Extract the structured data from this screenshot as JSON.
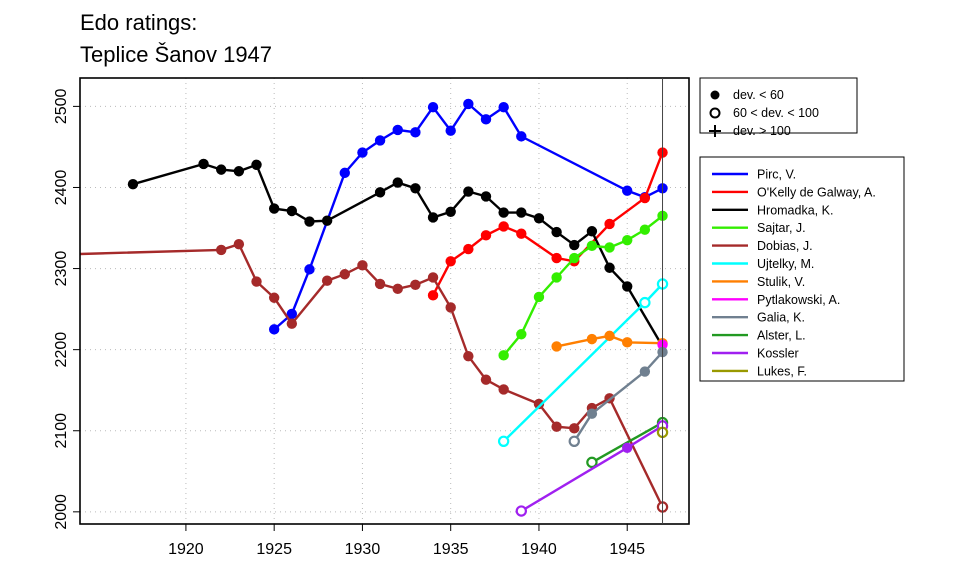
{
  "chart_data": {
    "type": "line",
    "title_lines": [
      "Edo ratings:",
      "Teplice Šanov 1947"
    ],
    "xlabel": "",
    "ylabel": "",
    "xlim": [
      1914,
      1948.5
    ],
    "ylim": [
      1985,
      2535
    ],
    "x_ticks": [
      1920,
      1925,
      1930,
      1935,
      1940,
      1945
    ],
    "y_ticks": [
      2000,
      2100,
      2200,
      2300,
      2400,
      2500
    ],
    "grid": true,
    "event_year": 1947,
    "marker_legend": [
      {
        "label": "dev. < 60",
        "marker": "filled"
      },
      {
        "label": "60 < dev. < 100",
        "marker": "open"
      },
      {
        "label": "dev. > 100",
        "marker": "plus"
      }
    ],
    "series": [
      {
        "name": "Pirc, V.",
        "color": "#0000ff",
        "points": [
          [
            1925,
            2225,
            "f"
          ],
          [
            1926,
            2244,
            "f"
          ],
          [
            1927,
            2299,
            "f"
          ],
          [
            1929,
            2418,
            "f"
          ],
          [
            1930,
            2443,
            "f"
          ],
          [
            1931,
            2458,
            "f"
          ],
          [
            1932,
            2471,
            "f"
          ],
          [
            1933,
            2468,
            "f"
          ],
          [
            1934,
            2499,
            "f"
          ],
          [
            1935,
            2470,
            "f"
          ],
          [
            1936,
            2503,
            "f"
          ],
          [
            1937,
            2484,
            "f"
          ],
          [
            1938,
            2499,
            "f"
          ],
          [
            1939,
            2463,
            "f"
          ],
          [
            1945,
            2396,
            "f"
          ],
          [
            1946,
            2388,
            "f"
          ],
          [
            1947,
            2399,
            "f"
          ]
        ]
      },
      {
        "name": "O'Kelly de Galway, A.",
        "color": "#ff0000",
        "points": [
          [
            1934,
            2267,
            "f"
          ],
          [
            1935,
            2309,
            "f"
          ],
          [
            1936,
            2324,
            "f"
          ],
          [
            1937,
            2341,
            "f"
          ],
          [
            1938,
            2352,
            "f"
          ],
          [
            1939,
            2343,
            "f"
          ],
          [
            1941,
            2313,
            "f"
          ],
          [
            1942,
            2309,
            "f"
          ],
          [
            1944,
            2355,
            "f"
          ],
          [
            1946,
            2387,
            "f"
          ],
          [
            1947,
            2443,
            "f"
          ]
        ]
      },
      {
        "name": "Hromadka, K.",
        "color": "#000000",
        "points": [
          [
            1917,
            2404,
            "f"
          ],
          [
            1921,
            2429,
            "f"
          ],
          [
            1922,
            2422,
            "f"
          ],
          [
            1923,
            2420,
            "f"
          ],
          [
            1924,
            2428,
            "f"
          ],
          [
            1925,
            2374,
            "f"
          ],
          [
            1926,
            2371,
            "f"
          ],
          [
            1927,
            2358,
            "f"
          ],
          [
            1928,
            2359,
            "f"
          ],
          [
            1931,
            2394,
            "f"
          ],
          [
            1932,
            2406,
            "f"
          ],
          [
            1933,
            2399,
            "f"
          ],
          [
            1934,
            2363,
            "f"
          ],
          [
            1935,
            2370,
            "f"
          ],
          [
            1936,
            2395,
            "f"
          ],
          [
            1937,
            2389,
            "f"
          ],
          [
            1938,
            2369,
            "f"
          ],
          [
            1939,
            2369,
            "f"
          ],
          [
            1940,
            2362,
            "f"
          ],
          [
            1941,
            2345,
            "f"
          ],
          [
            1942,
            2329,
            "f"
          ],
          [
            1943,
            2346,
            "f"
          ],
          [
            1944,
            2301,
            "f"
          ],
          [
            1945,
            2278,
            "f"
          ],
          [
            1947,
            2204,
            "n"
          ]
        ]
      },
      {
        "name": "Sajtar, J.",
        "color": "#33ee00",
        "points": [
          [
            1938,
            2193,
            "f"
          ],
          [
            1939,
            2219,
            "f"
          ],
          [
            1940,
            2265,
            "f"
          ],
          [
            1941,
            2289,
            "f"
          ],
          [
            1942,
            2313,
            "f"
          ],
          [
            1943,
            2328,
            "f"
          ],
          [
            1944,
            2326,
            "f"
          ],
          [
            1945,
            2335,
            "f"
          ],
          [
            1946,
            2348,
            "f"
          ],
          [
            1947,
            2365,
            "f"
          ]
        ]
      },
      {
        "name": "Dobias, J.",
        "color": "#a52a2a",
        "points": [
          [
            1914,
            2318,
            "n"
          ],
          [
            1922,
            2323,
            "f"
          ],
          [
            1923,
            2330,
            "f"
          ],
          [
            1924,
            2284,
            "f"
          ],
          [
            1925,
            2264,
            "f"
          ],
          [
            1926,
            2232,
            "f"
          ],
          [
            1928,
            2285,
            "f"
          ],
          [
            1929,
            2293,
            "f"
          ],
          [
            1930,
            2304,
            "f"
          ],
          [
            1931,
            2281,
            "f"
          ],
          [
            1932,
            2275,
            "f"
          ],
          [
            1933,
            2280,
            "f"
          ],
          [
            1934,
            2289,
            "f"
          ],
          [
            1935,
            2252,
            "f"
          ],
          [
            1936,
            2192,
            "f"
          ],
          [
            1937,
            2163,
            "f"
          ],
          [
            1938,
            2151,
            "f"
          ],
          [
            1940,
            2133,
            "f"
          ],
          [
            1941,
            2105,
            "f"
          ],
          [
            1942,
            2103,
            "f"
          ],
          [
            1943,
            2128,
            "f"
          ],
          [
            1944,
            2140,
            "f"
          ],
          [
            1947,
            2006,
            "o"
          ]
        ]
      },
      {
        "name": "Ujtelky, M.",
        "color": "#00ffff",
        "points": [
          [
            1938,
            2087,
            "o"
          ],
          [
            1946,
            2258,
            "o"
          ],
          [
            1947,
            2281,
            "o"
          ]
        ]
      },
      {
        "name": "Stulik, V.",
        "color": "#ff7f00",
        "points": [
          [
            1941,
            2204,
            "f"
          ],
          [
            1943,
            2213,
            "f"
          ],
          [
            1944,
            2217,
            "f"
          ],
          [
            1945,
            2209,
            "f"
          ],
          [
            1947,
            2208,
            "f"
          ]
        ]
      },
      {
        "name": "Pytlakowski, A.",
        "color": "#ff00ff",
        "points": [
          [
            1947,
            2206,
            "f"
          ]
        ]
      },
      {
        "name": "Galia, K.",
        "color": "#708090",
        "points": [
          [
            1942,
            2087,
            "o"
          ],
          [
            1943,
            2121,
            "f"
          ],
          [
            1946,
            2173,
            "f"
          ],
          [
            1947,
            2197,
            "f"
          ]
        ]
      },
      {
        "name": "Alster, L.",
        "color": "#229922",
        "points": [
          [
            1943,
            2061,
            "o"
          ],
          [
            1947,
            2110,
            "o"
          ]
        ]
      },
      {
        "name": "Kossler",
        "color": "#a020f0",
        "points": [
          [
            1939,
            2001,
            "o"
          ],
          [
            1945,
            2079,
            "f"
          ],
          [
            1947,
            2106,
            "o"
          ]
        ]
      },
      {
        "name": "Lukes, F.",
        "color": "#999900",
        "points": [
          [
            1947,
            2098,
            "o"
          ]
        ]
      }
    ]
  }
}
